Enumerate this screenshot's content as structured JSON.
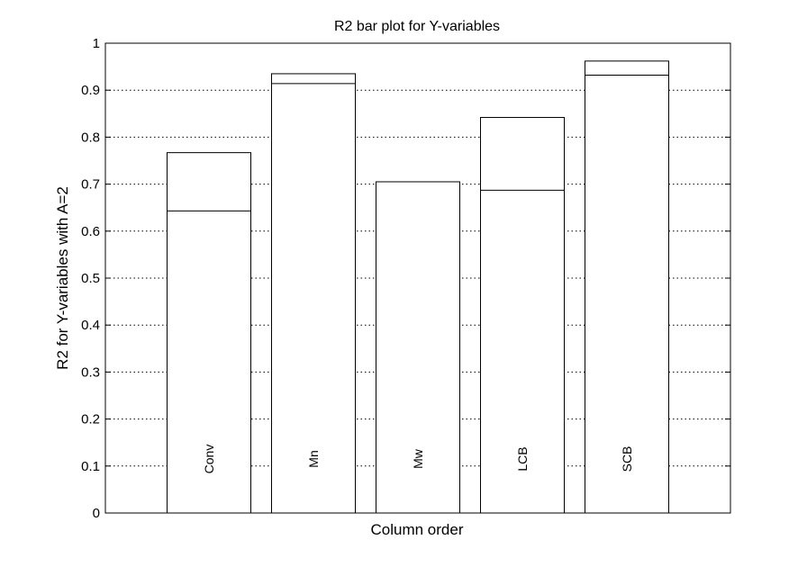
{
  "chart_data": {
    "type": "bar",
    "title": "R2 bar plot for Y-variables",
    "xlabel": "Column order",
    "ylabel": "R2 for Y-variables with A=2",
    "ylim": [
      0,
      1
    ],
    "yticks": [
      "0",
      "0.1",
      "0.2",
      "0.3",
      "0.4",
      "0.5",
      "0.6",
      "0.7",
      "0.8",
      "0.9",
      "1"
    ],
    "grid": "y dotted",
    "legend": "none",
    "categories": [
      "Conv",
      "Mn",
      "Mw",
      "LCB",
      "SCB"
    ],
    "series": [
      {
        "values": [
          0.643,
          0.914,
          0.705,
          0.687,
          0.932
        ]
      },
      {
        "values": [
          0.767,
          0.935,
          0.705,
          0.842,
          0.962
        ]
      }
    ]
  }
}
